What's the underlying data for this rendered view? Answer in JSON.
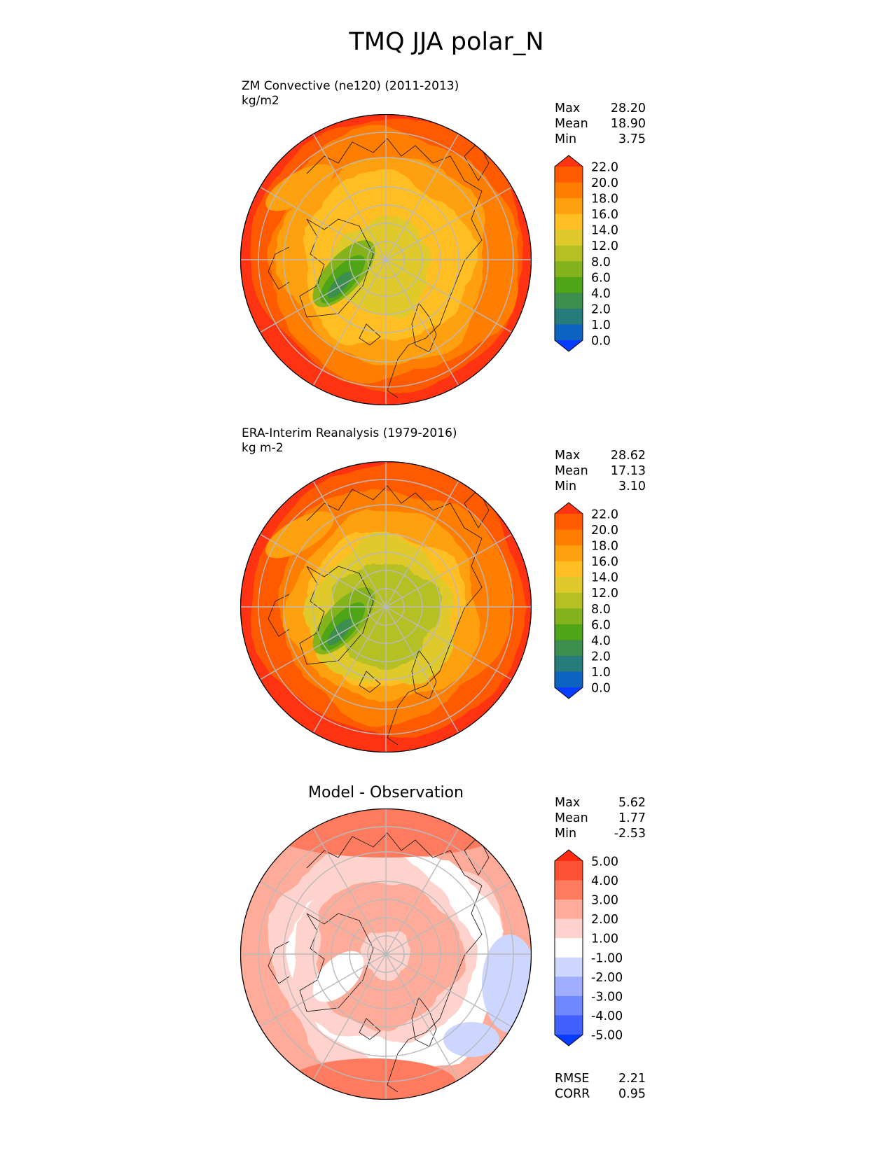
{
  "title": "TMQ JJA polar_N",
  "panels": [
    {
      "id": "model",
      "title_lines": [
        "ZM Convective (ne120) (2011-2013)",
        "kg/m2"
      ],
      "stats": [
        {
          "label": "Max",
          "value": "28.20"
        },
        {
          "label": "Mean",
          "value": "18.90"
        },
        {
          "label": "Min",
          "value": "3.75"
        }
      ],
      "colorbar": {
        "tick_labels": [
          "22.0",
          "20.0",
          "18.0",
          "16.0",
          "14.0",
          "12.0",
          "8.0",
          "6.0",
          "4.0",
          "2.0",
          "1.0",
          "0.0"
        ],
        "colors": [
          "#ff3311",
          "#ff5a00",
          "#ff7e00",
          "#ffa00e",
          "#ffbf22",
          "#dfc92b",
          "#b5c024",
          "#84b31b",
          "#4fa516",
          "#3c8e4e",
          "#267c7b",
          "#0c63c0",
          "#0a3cff"
        ]
      }
    },
    {
      "id": "observation",
      "title_lines": [
        "ERA-Interim Reanalysis (1979-2016)",
        "kg m-2"
      ],
      "stats": [
        {
          "label": "Max",
          "value": "28.62"
        },
        {
          "label": "Mean",
          "value": "17.13"
        },
        {
          "label": "Min",
          "value": "3.10"
        }
      ],
      "colorbar": {
        "tick_labels": [
          "22.0",
          "20.0",
          "18.0",
          "16.0",
          "14.0",
          "12.0",
          "8.0",
          "6.0",
          "4.0",
          "2.0",
          "1.0",
          "0.0"
        ],
        "colors": [
          "#ff3311",
          "#ff5a00",
          "#ff7e00",
          "#ffa00e",
          "#ffbf22",
          "#dfc92b",
          "#b5c024",
          "#84b31b",
          "#4fa516",
          "#3c8e4e",
          "#267c7b",
          "#0c63c0",
          "#0a3cff"
        ]
      }
    },
    {
      "id": "difference",
      "title_lines": [
        "Model - Observation"
      ],
      "stats": [
        {
          "label": "Max",
          "value": "5.62"
        },
        {
          "label": "Mean",
          "value": "1.77"
        },
        {
          "label": "Min",
          "value": "-2.53"
        }
      ],
      "colorbar": {
        "tick_labels": [
          "5.00",
          "4.00",
          "3.00",
          "2.00",
          "1.00",
          "-1.00",
          "-2.00",
          "-3.00",
          "-4.00",
          "-5.00"
        ],
        "colors": [
          "#ff2a10",
          "#ff5133",
          "#ff7b5f",
          "#ffab99",
          "#ffd3cd",
          "#ffffff",
          "#cdd6ff",
          "#9faeff",
          "#6f88ff",
          "#3f5fff",
          "#0a3cff"
        ]
      },
      "extra_stats": [
        {
          "label": "RMSE",
          "value": "2.21"
        },
        {
          "label": "CORR",
          "value": "0.95"
        }
      ]
    }
  ]
}
